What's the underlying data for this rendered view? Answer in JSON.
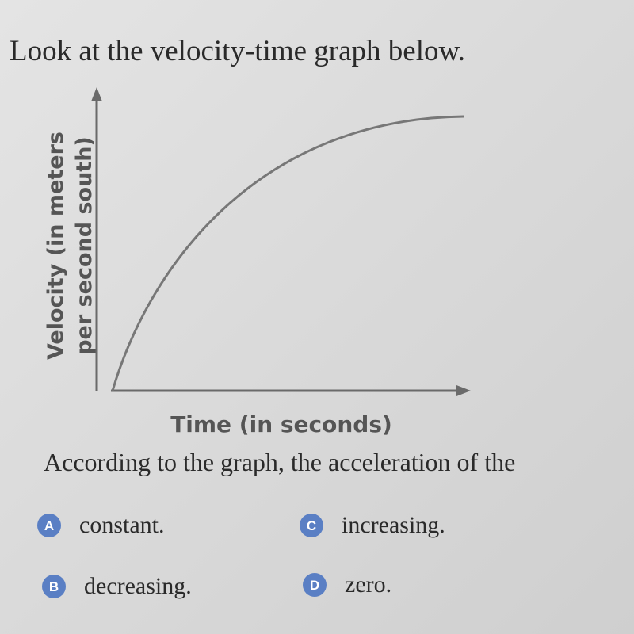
{
  "title": "Look at the velocity-time graph below.",
  "graph": {
    "y_label": [
      "Velocity (in meters",
      "per second south)"
    ],
    "x_label": "Time (in seconds)"
  },
  "question": "According to the graph, the acceleration of the",
  "options": [
    {
      "letter": "A",
      "text": "constant."
    },
    {
      "letter": "B",
      "text": "decreasing."
    },
    {
      "letter": "C",
      "text": "increasing."
    },
    {
      "letter": "D",
      "text": "zero."
    }
  ]
}
